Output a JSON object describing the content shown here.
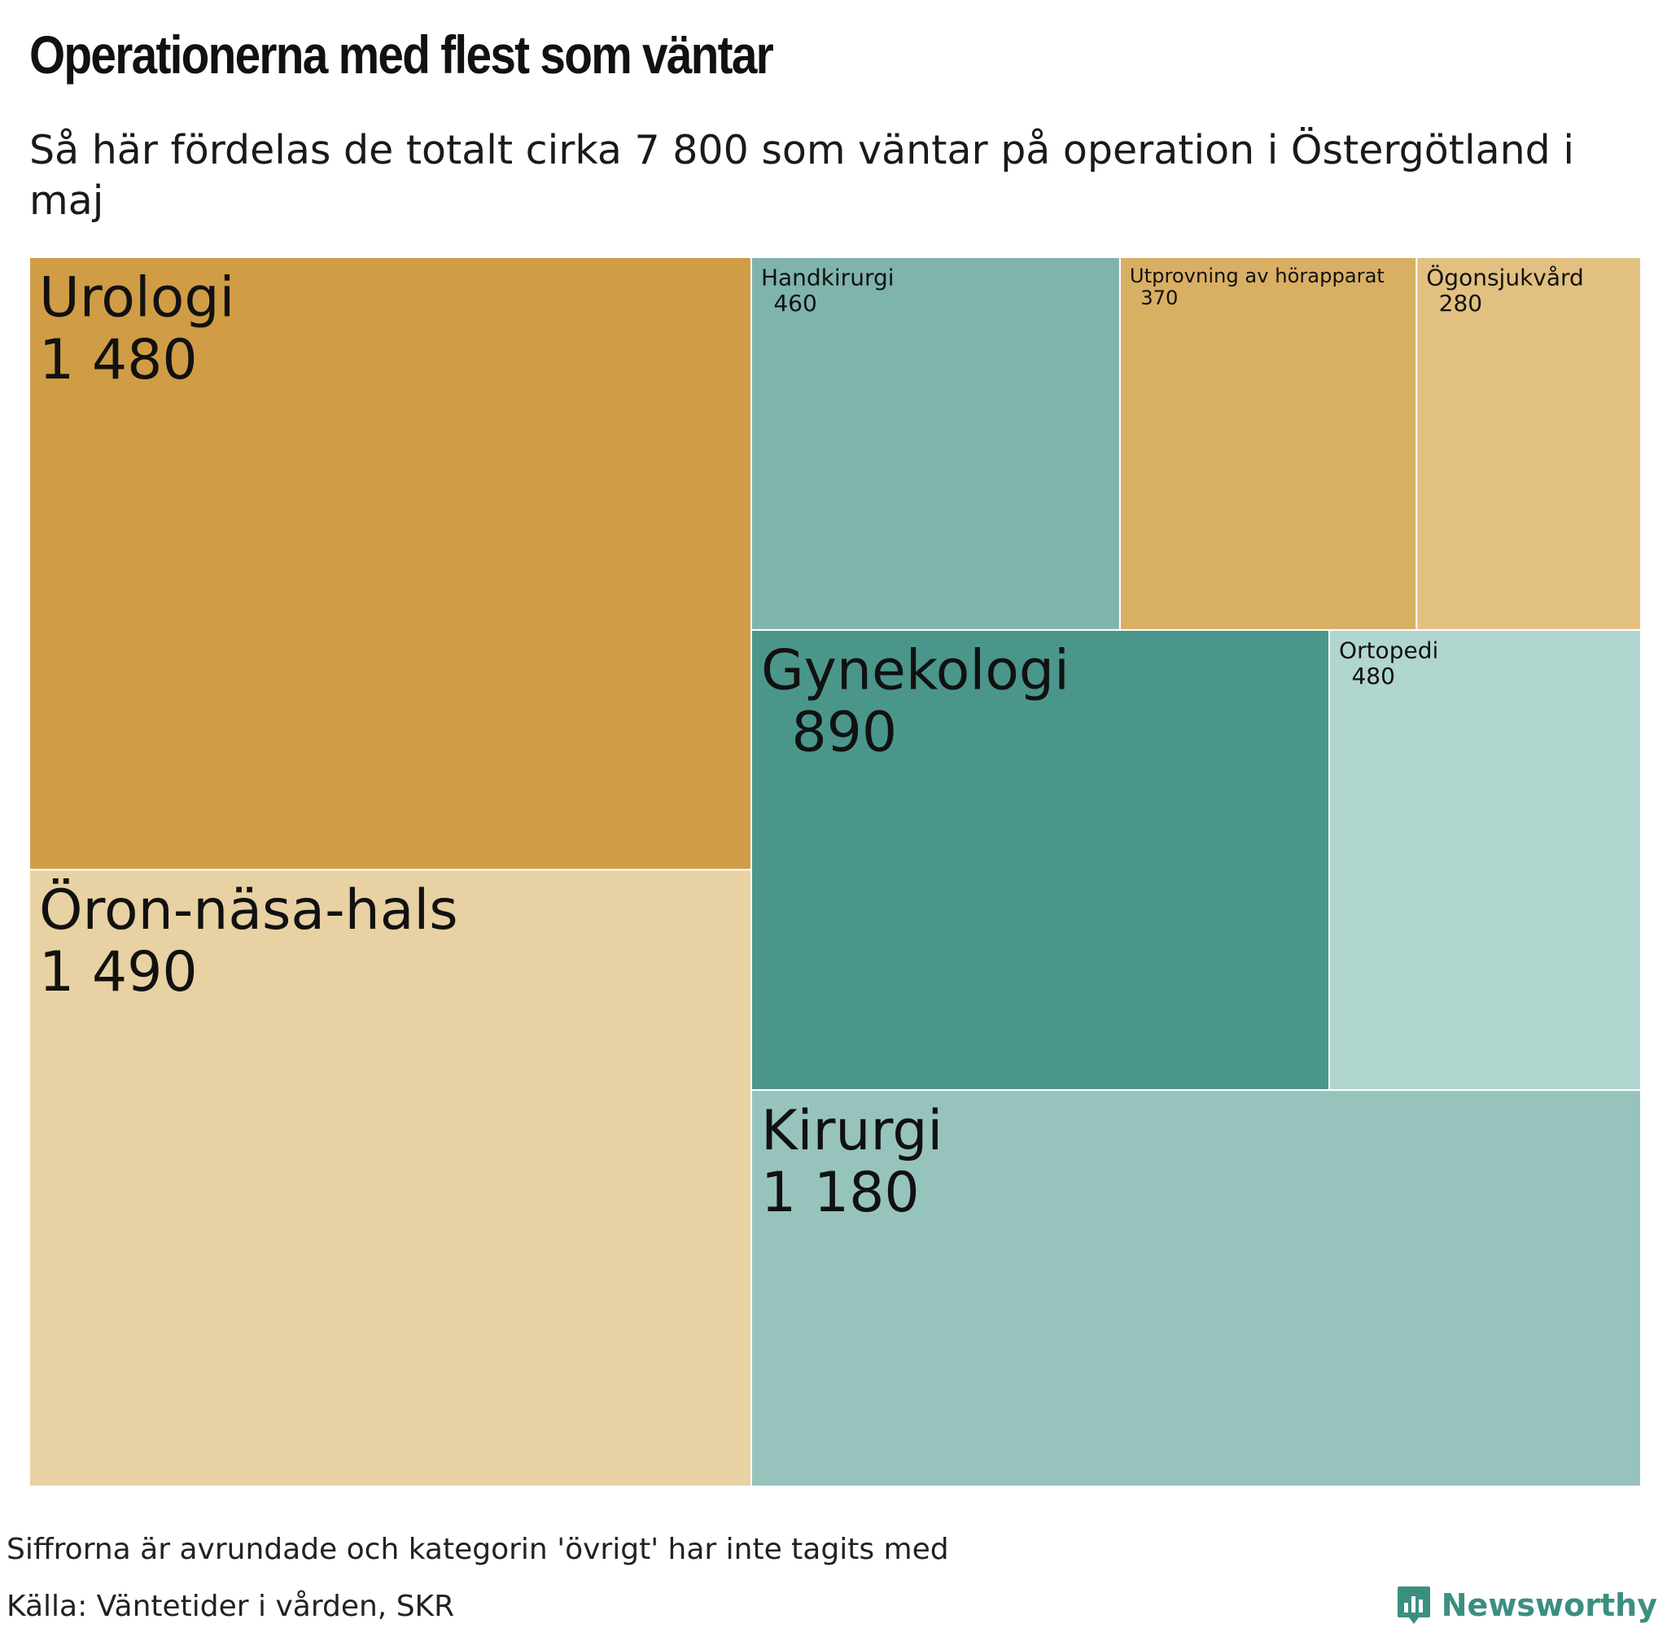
{
  "title": "Operationerna med flest som väntar",
  "subtitle": "Så här fördelas de totalt cirka 7 800 som väntar på operation i Östergötland i maj",
  "footnote": "Siffrorna är avrundade och kategorin 'övrigt' har inte tagits med",
  "source": "Källa: Väntetider i vården, SKR",
  "brand": {
    "name": "Newsworthy",
    "color": "#3b8f80",
    "icon": "bar-chart-speech-bubble-icon"
  },
  "chart_data": {
    "type": "treemap",
    "title": "Operationerna med flest som väntar",
    "subtitle": "Så här fördelas de totalt cirka 7 800 som väntar på operation i Östergötland i maj",
    "groups": [
      {
        "colors": "ochre",
        "items": [
          {
            "label": "Urologi",
            "value": 1480,
            "display": "1 480",
            "color": "#d09c45"
          },
          {
            "label": "Öron-näsa-hals",
            "value": 1490,
            "display": "1 490",
            "color": "#e8d1a2"
          },
          {
            "label": "Utprovning av hörapparat",
            "value": 370,
            "display": "370",
            "color": "#d9af64"
          },
          {
            "label": "Ögonsjukvård",
            "value": 280,
            "display": "280",
            "color": "#e2c081"
          }
        ]
      },
      {
        "colors": "teal",
        "items": [
          {
            "label": "Handkirurgi",
            "value": 460,
            "display": "460",
            "color": "#7fb4ad"
          },
          {
            "label": "Gynekologi",
            "value": 890,
            "display": "890",
            "color": "#4b968a"
          },
          {
            "label": "Ortopedi",
            "value": 480,
            "display": "480",
            "color": "#b1d6cf"
          },
          {
            "label": "Kirurgi",
            "value": 1180,
            "display": "1 180",
            "color": "#97c3bd"
          }
        ]
      }
    ]
  }
}
